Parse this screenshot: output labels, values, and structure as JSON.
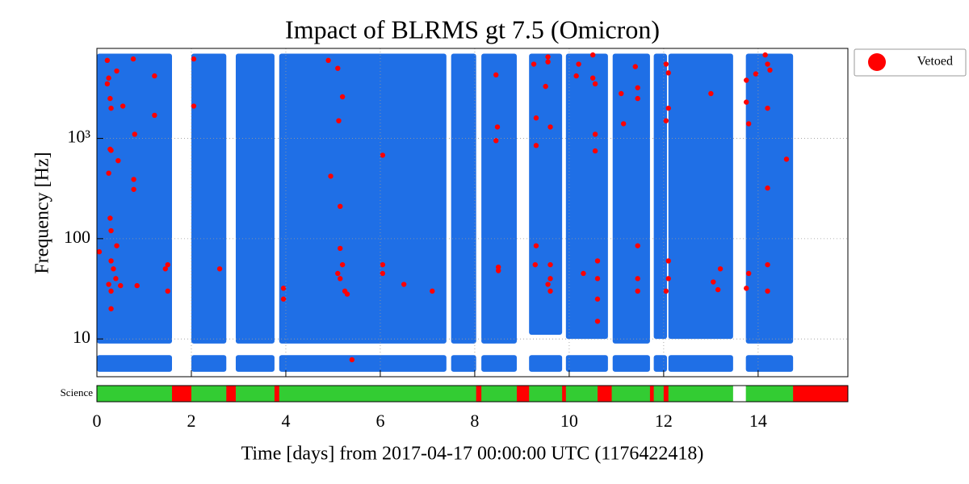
{
  "chart_data": {
    "type": "scatter",
    "title": "Impact of BLRMS gt 7.5 (Omicron)",
    "xlabel": "Time [days] from 2017-04-17 00:00:00 UTC (1176422418)",
    "ylabel": "Frequency [Hz]",
    "xlim": [
      0,
      15.9
    ],
    "ylim": [
      4.2,
      7900
    ],
    "yscale": "log",
    "xticks": [
      0,
      2,
      4,
      6,
      8,
      10,
      12,
      14
    ],
    "yticks": [
      10,
      100,
      {
        "value": 1000,
        "label": "10³"
      }
    ],
    "grid": true,
    "legend": "outside-right",
    "series": [
      {
        "color": "#1f6fe6",
        "blocks": [
          {
            "x": [
              0,
              1.59
            ],
            "y": [
              9,
              7000
            ]
          },
          {
            "x": [
              0,
              1.59
            ],
            "y": [
              4.7,
              6.9
            ]
          },
          {
            "x": [
              2.0,
              2.74
            ],
            "y": [
              9,
              7000
            ]
          },
          {
            "x": [
              2.0,
              2.74
            ],
            "y": [
              4.7,
              6.9
            ]
          },
          {
            "x": [
              2.94,
              3.76
            ],
            "y": [
              9,
              7000
            ]
          },
          {
            "x": [
              2.94,
              3.76
            ],
            "y": [
              4.7,
              6.9
            ]
          },
          {
            "x": [
              3.86,
              7.4
            ],
            "y": [
              9,
              7000
            ]
          },
          {
            "x": [
              3.86,
              7.4
            ],
            "y": [
              4.7,
              6.9
            ]
          },
          {
            "x": [
              7.5,
              8.03
            ],
            "y": [
              9,
              7000
            ]
          },
          {
            "x": [
              7.5,
              8.03
            ],
            "y": [
              4.7,
              6.9
            ]
          },
          {
            "x": [
              8.14,
              8.89
            ],
            "y": [
              9,
              7000
            ]
          },
          {
            "x": [
              8.14,
              8.89
            ],
            "y": [
              4.7,
              6.9
            ]
          },
          {
            "x": [
              9.15,
              9.85
            ],
            "y": [
              11,
              7000
            ]
          },
          {
            "x": [
              9.15,
              9.85
            ],
            "y": [
              4.7,
              6.9
            ]
          },
          {
            "x": [
              9.93,
              10.82
            ],
            "y": [
              10,
              7000
            ]
          },
          {
            "x": [
              9.93,
              10.82
            ],
            "y": [
              4.7,
              6.9
            ]
          },
          {
            "x": [
              10.92,
              11.71
            ],
            "y": [
              9,
              7000
            ]
          },
          {
            "x": [
              10.92,
              11.71
            ],
            "y": [
              4.7,
              6.9
            ]
          },
          {
            "x": [
              11.79,
              12.07
            ],
            "y": [
              10,
              7000
            ]
          },
          {
            "x": [
              11.79,
              12.07
            ],
            "y": [
              4.7,
              6.9
            ]
          },
          {
            "x": [
              12.1,
              13.47
            ],
            "y": [
              10,
              7000
            ]
          },
          {
            "x": [
              12.1,
              13.47
            ],
            "y": [
              4.7,
              6.9
            ]
          },
          {
            "x": [
              13.74,
              14.74
            ],
            "y": [
              9,
              7000
            ]
          },
          {
            "x": [
              13.74,
              14.74
            ],
            "y": [
              4.7,
              6.9
            ]
          }
        ]
      },
      {
        "name": "Vetoed",
        "color": "#ff0000",
        "x": [
          0.05,
          0.22,
          0.25,
          0.22,
          0.28,
          0.3,
          0.28,
          0.3,
          0.25,
          0.45,
          0.28,
          0.3,
          0.3,
          0.35,
          0.25,
          0.3,
          0.4,
          0.42,
          0.5,
          0.3,
          0.42,
          0.55,
          0.77,
          0.8,
          0.78,
          0.78,
          0.85,
          1.22,
          1.22,
          1.45,
          1.5,
          1.5,
          2.05,
          2.05,
          2.6,
          3.95,
          3.95,
          4.9,
          4.95,
          5.1,
          5.12,
          5.15,
          5.15,
          5.2,
          5.1,
          5.15,
          5.2,
          5.25,
          5.3,
          5.4,
          6.05,
          6.05,
          6.05,
          6.5,
          7.1,
          8.45,
          8.48,
          8.45,
          8.5,
          8.5,
          9.25,
          9.3,
          9.3,
          9.3,
          9.28,
          9.55,
          9.55,
          9.5,
          9.6,
          9.6,
          9.6,
          9.55,
          9.6,
          10.15,
          10.2,
          10.3,
          10.5,
          10.5,
          10.55,
          10.55,
          10.55,
          10.6,
          10.6,
          10.6,
          10.6,
          11.1,
          11.15,
          11.4,
          11.45,
          11.45,
          11.45,
          11.45,
          11.45,
          12.05,
          12.1,
          12.1,
          12.05,
          12.1,
          12.1,
          12.05,
          13.0,
          13.05,
          13.2,
          13.15,
          13.75,
          13.75,
          13.8,
          13.8,
          13.75,
          13.95,
          14.15,
          14.2,
          14.25,
          14.2,
          14.2,
          14.2,
          14.2,
          14.6
        ],
        "y": [
          74,
          6000,
          4000,
          3500,
          2500,
          2000,
          780,
          760,
          450,
          600,
          160,
          120,
          60,
          50,
          35,
          30,
          40,
          85,
          34,
          20,
          4700,
          2100,
          6200,
          1100,
          390,
          310,
          34,
          4200,
          1700,
          50,
          30,
          55,
          6200,
          2100,
          50,
          32,
          25,
          6000,
          420,
          5000,
          1500,
          210,
          80,
          2600,
          45,
          40,
          55,
          30,
          28,
          6.2,
          680,
          55,
          45,
          35,
          30,
          4300,
          1300,
          950,
          48,
          52,
          5500,
          1600,
          850,
          85,
          55,
          6500,
          5800,
          3300,
          1300,
          55,
          40,
          35,
          30,
          4200,
          5500,
          45,
          6800,
          4000,
          3500,
          1100,
          750,
          60,
          40,
          25,
          15,
          2800,
          1400,
          5200,
          3200,
          2500,
          85,
          40,
          30,
          5500,
          4500,
          2000,
          1500,
          60,
          40,
          30,
          2800,
          37,
          50,
          31,
          3800,
          2300,
          1400,
          45,
          32,
          4400,
          6800,
          5500,
          4800,
          2000,
          320,
          55,
          30,
          620
        ]
      }
    ],
    "segments": {
      "label": "Science",
      "items": [
        {
          "x": [
            0,
            15.9
          ],
          "color": "#33cc33"
        },
        {
          "x": [
            1.59,
            2.0
          ],
          "color": "#ff0000"
        },
        {
          "x": [
            2.74,
            2.94
          ],
          "color": "#ff0000"
        },
        {
          "x": [
            3.76,
            3.86
          ],
          "color": "#ff0000"
        },
        {
          "x": [
            8.03,
            8.14
          ],
          "color": "#ff0000"
        },
        {
          "x": [
            8.89,
            9.15
          ],
          "color": "#ff0000"
        },
        {
          "x": [
            9.85,
            9.93
          ],
          "color": "#ff0000"
        },
        {
          "x": [
            10.6,
            10.9
          ],
          "color": "#ff0000"
        },
        {
          "x": [
            11.71,
            11.79
          ],
          "color": "#ff0000"
        },
        {
          "x": [
            12.0,
            12.1
          ],
          "color": "#ff0000"
        },
        {
          "x": [
            13.47,
            13.74
          ],
          "color": "#ffffff"
        },
        {
          "x": [
            14.74,
            15.9
          ],
          "color": "#ff0000"
        }
      ]
    }
  }
}
